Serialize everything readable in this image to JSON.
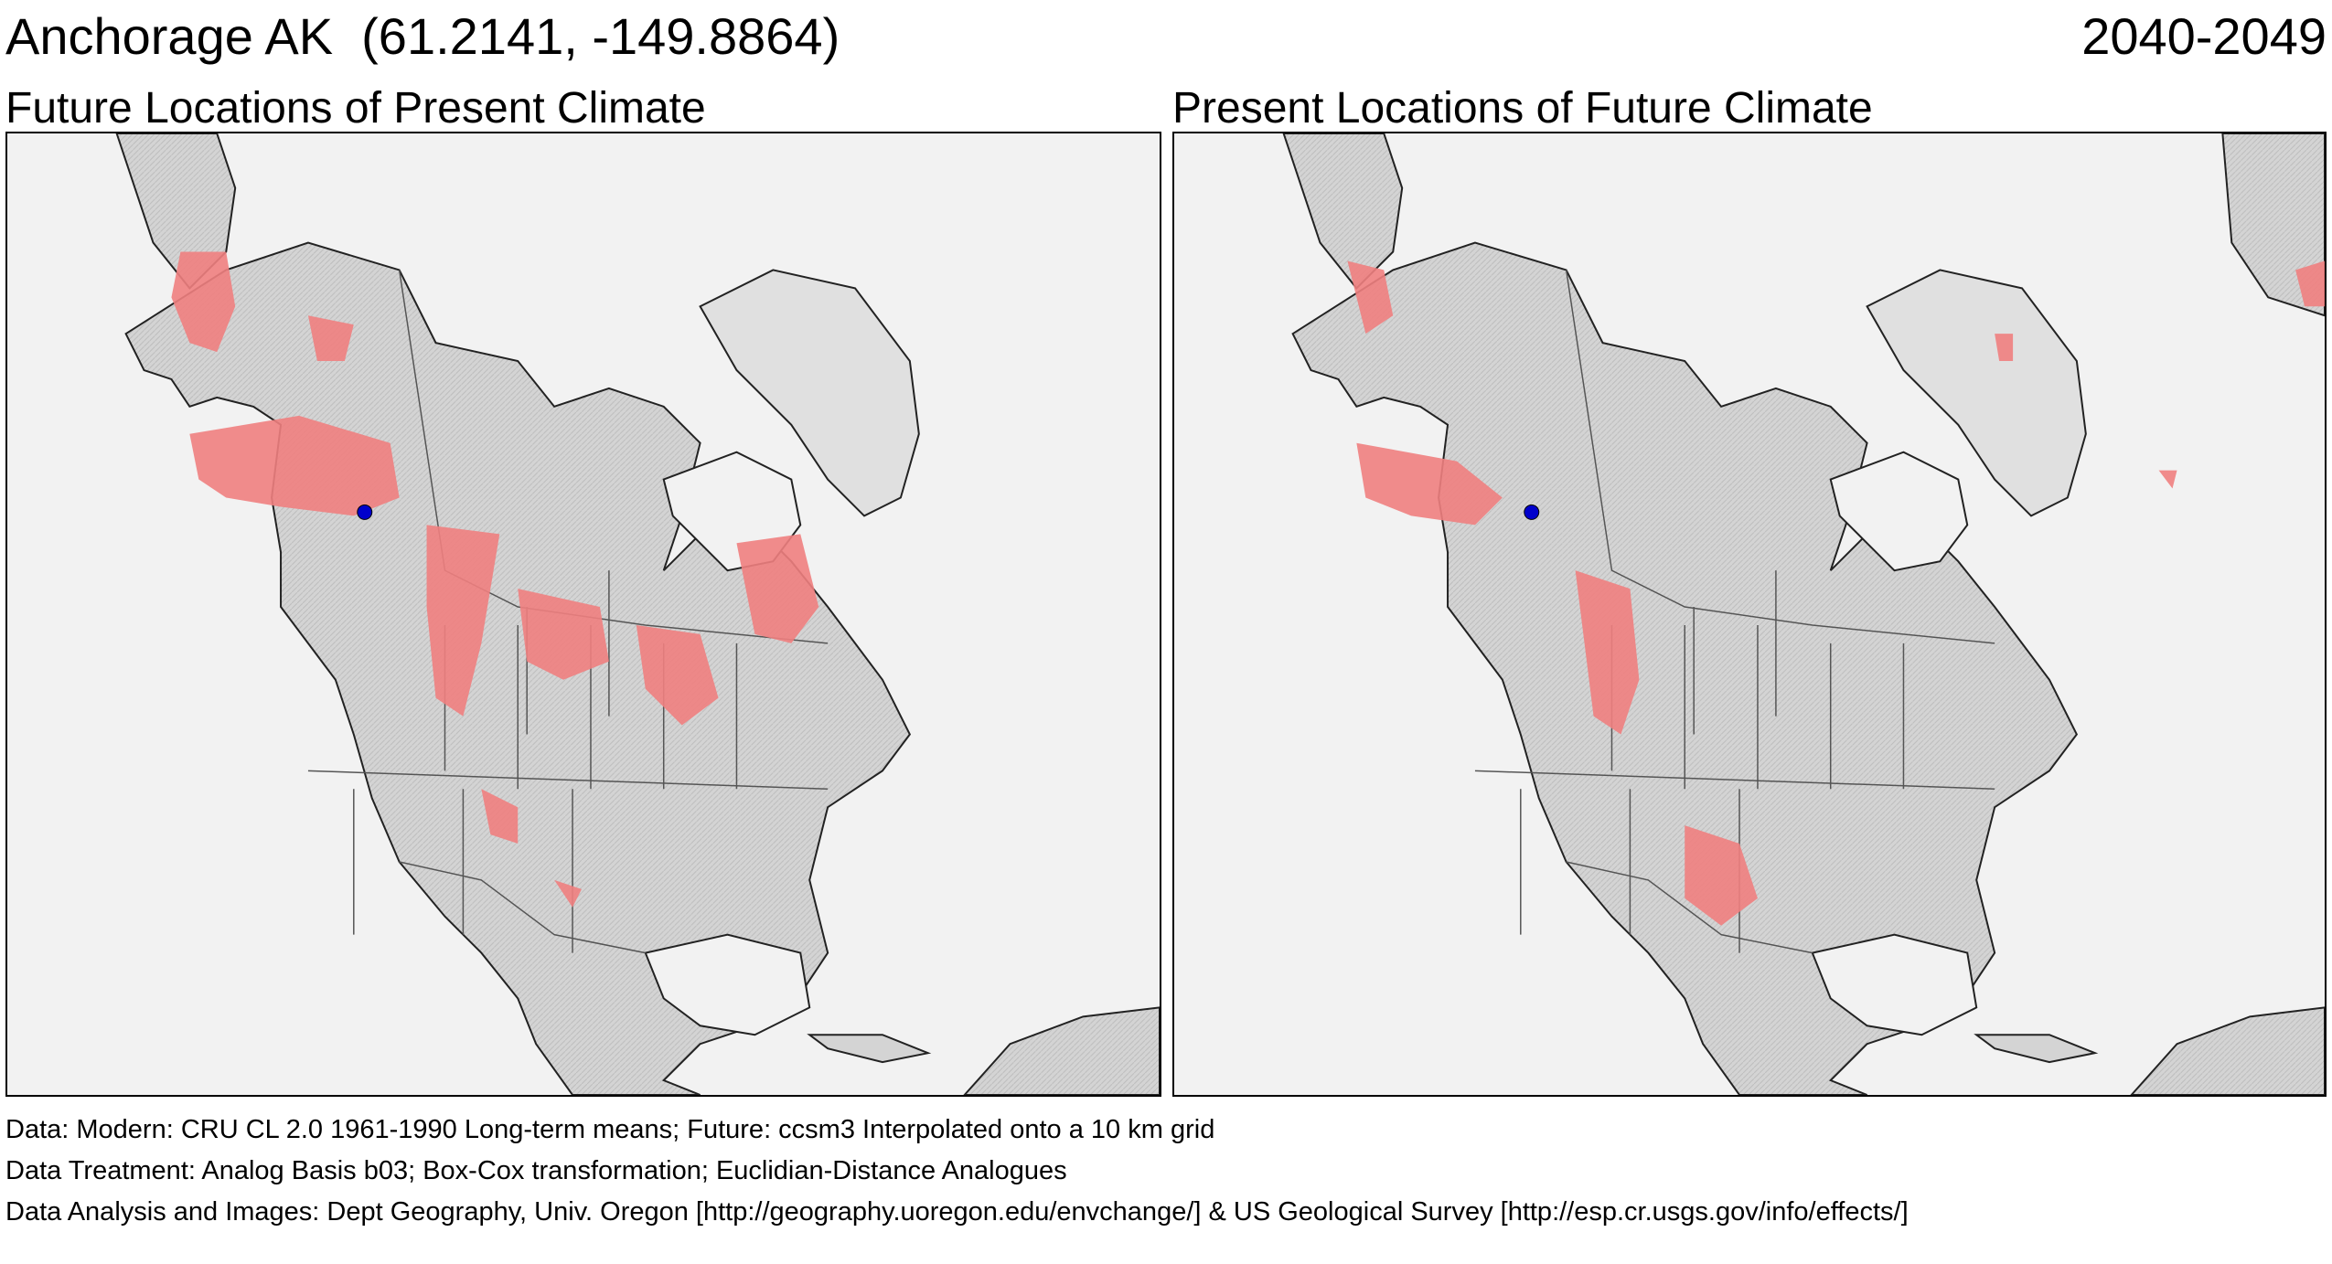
{
  "header": {
    "location": "Anchorage AK  (61.2141, -149.8864)",
    "period": "2040-2049"
  },
  "panels": [
    {
      "title": "Future Locations of Present Climate"
    },
    {
      "title": "Present Locations of Future Climate"
    }
  ],
  "map": {
    "marker_label": "Anchorage AK",
    "marker_lat": 61.2141,
    "marker_lon": -149.8864,
    "colors": {
      "land": "#d6d6d6",
      "water": "#f2f2f2",
      "analog_area": "#f08080",
      "marker": "#0000cc",
      "border": "#333333"
    }
  },
  "footer": {
    "data": "Data:  Modern: CRU CL 2.0 1961-1990 Long-term means; Future: ccsm3 Interpolated onto a 10 km grid",
    "treatment": "Data Treatment:  Analog Basis b03; Box-Cox transformation; Euclidian-Distance Analogues",
    "analysis": "Data Analysis and Images:  Dept Geography, Univ. Oregon [http://geography.uoregon.edu/envchange/] & US Geological Survey [http://esp.cr.usgs.gov/info/effects/]"
  }
}
